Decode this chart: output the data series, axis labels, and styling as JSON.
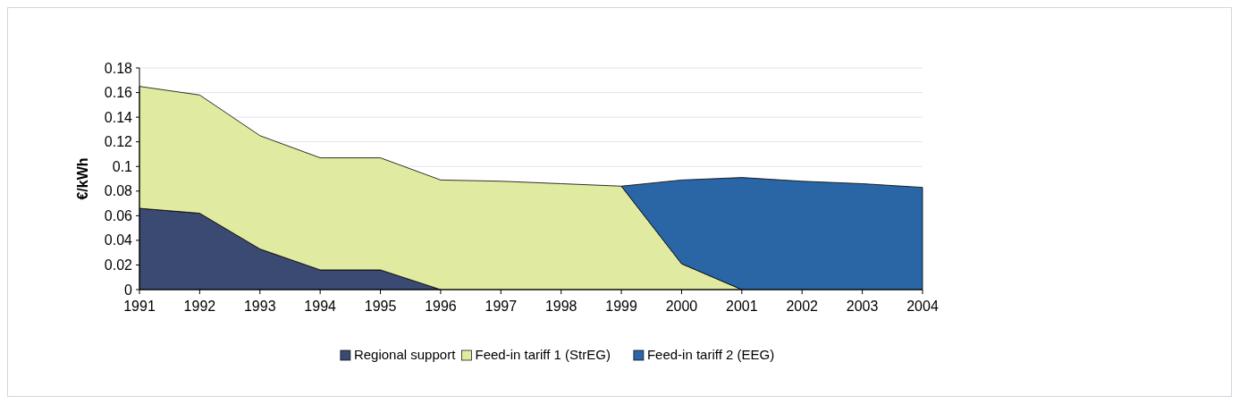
{
  "chart_data": {
    "type": "area",
    "stacked": true,
    "ylabel": "€/kWh",
    "categories": [
      "1991",
      "1992",
      "1993",
      "1994",
      "1995",
      "1996",
      "1997",
      "1998",
      "1999",
      "2000",
      "2001",
      "2002",
      "2003",
      "2004"
    ],
    "series": [
      {
        "name": "Regional support",
        "color": "#3b4a72",
        "values": [
          0.066,
          0.062,
          0.033,
          0.016,
          0.016,
          0,
          null,
          null,
          null,
          null,
          null,
          null,
          null,
          null
        ]
      },
      {
        "name": "Feed-in tariff 1 (StrEG)",
        "color": "#e0eaa0",
        "values": [
          0.099,
          0.096,
          0.092,
          0.091,
          0.091,
          0.089,
          0.088,
          0.086,
          0.084,
          0.021,
          0,
          null,
          null,
          null
        ]
      },
      {
        "name": "Feed-in tariff 2 (EEG)",
        "color": "#2a66a6",
        "values": [
          null,
          null,
          null,
          null,
          null,
          null,
          null,
          null,
          0,
          0.068,
          0.091,
          0.088,
          0.086,
          0.083
        ]
      }
    ],
    "ylim": [
      0,
      0.18
    ],
    "yticks": [
      0,
      0.02,
      0.04,
      0.06,
      0.08,
      0.1,
      0.12,
      0.14,
      0.16,
      0.18
    ],
    "grid": "y",
    "legend": "bottom"
  }
}
